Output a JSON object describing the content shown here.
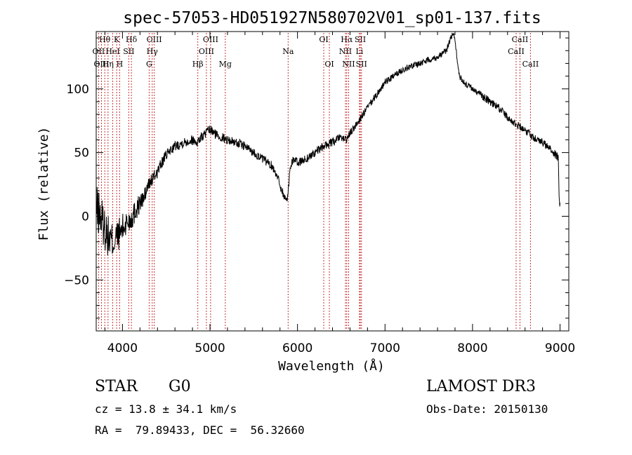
{
  "chart_data": {
    "type": "line",
    "title": "spec-57053-HD051927N580702V01_sp01-137.fits",
    "xlabel": "Wavelength (Å)",
    "ylabel": "Flux (relative)",
    "xlim": [
      3700,
      9100
    ],
    "ylim": [
      -90,
      145
    ],
    "xticks": [
      4000,
      5000,
      6000,
      7000,
      8000,
      9000
    ],
    "yticks": [
      -50,
      0,
      50,
      100
    ],
    "line_color": "#000000",
    "marker_color": "#c83232",
    "lines": [
      {
        "label": "Hθ",
        "wl": 3798,
        "row": 0
      },
      {
        "label": "OII",
        "wl": 3727,
        "row": 1
      },
      {
        "label": "OIII",
        "wl": 3760,
        "row": 2
      },
      {
        "label": "K",
        "wl": 3934,
        "row": 0
      },
      {
        "label": "HeI",
        "wl": 3889,
        "row": 1
      },
      {
        "label": "Hη",
        "wl": 3835,
        "row": 2
      },
      {
        "label": "H",
        "wl": 3968,
        "row": 2
      },
      {
        "label": "Hδ",
        "wl": 4102,
        "row": 0
      },
      {
        "label": "SII",
        "wl": 4072,
        "row": 1
      },
      {
        "label": "OIII",
        "wl": 4363,
        "row": 0
      },
      {
        "label": "Hγ",
        "wl": 4340,
        "row": 1
      },
      {
        "label": "G",
        "wl": 4305,
        "row": 2
      },
      {
        "label": "OIII",
        "wl": 5007,
        "row": 0
      },
      {
        "label": "OIII",
        "wl": 4959,
        "row": 1
      },
      {
        "label": "Hβ",
        "wl": 4861,
        "row": 2
      },
      {
        "label": "Mg",
        "wl": 5175,
        "row": 2
      },
      {
        "label": "Na",
        "wl": 5893,
        "row": 1
      },
      {
        "label": "OI",
        "wl": 6300,
        "row": 0
      },
      {
        "label": "OI",
        "wl": 6364,
        "row": 2
      },
      {
        "label": "Hα",
        "wl": 6563,
        "row": 0
      },
      {
        "label": "NII",
        "wl": 6548,
        "row": 1
      },
      {
        "label": "NII",
        "wl": 6584,
        "row": 2
      },
      {
        "label": "SII",
        "wl": 6717,
        "row": 0
      },
      {
        "label": "Li",
        "wl": 6708,
        "row": 1
      },
      {
        "label": "SII",
        "wl": 6731,
        "row": 2
      },
      {
        "label": "CaII",
        "wl": 8542,
        "row": 0
      },
      {
        "label": "CaII",
        "wl": 8498,
        "row": 1
      },
      {
        "label": "CaII",
        "wl": 8662,
        "row": 2
      }
    ],
    "spectrum": {
      "wavelength": [
        3700,
        3750,
        3800,
        3850,
        3900,
        3950,
        4000,
        4050,
        4100,
        4150,
        4200,
        4250,
        4300,
        4350,
        4400,
        4450,
        4500,
        4550,
        4600,
        4700,
        4800,
        4850,
        4900,
        4950,
        5000,
        5050,
        5100,
        5200,
        5300,
        5400,
        5500,
        5600,
        5700,
        5750,
        5800,
        5850,
        5880,
        5900,
        5920,
        5950,
        6000,
        6100,
        6200,
        6300,
        6400,
        6500,
        6560,
        6600,
        6700,
        6800,
        6900,
        7000,
        7100,
        7200,
        7300,
        7400,
        7500,
        7600,
        7700,
        7750,
        7780,
        7800,
        7820,
        7850,
        7900,
        8000,
        8100,
        8200,
        8300,
        8400,
        8500,
        8600,
        8700,
        8800,
        8900,
        8980,
        8990,
        9000
      ],
      "flux": [
        5,
        0,
        -10,
        -18,
        -20,
        -15,
        -10,
        -5,
        -2,
        5,
        10,
        15,
        25,
        30,
        35,
        42,
        48,
        52,
        55,
        58,
        60,
        58,
        62,
        65,
        68,
        65,
        63,
        60,
        58,
        55,
        50,
        45,
        40,
        35,
        25,
        15,
        12,
        25,
        40,
        45,
        42,
        45,
        50,
        55,
        58,
        62,
        60,
        65,
        75,
        85,
        95,
        105,
        110,
        115,
        118,
        120,
        123,
        125,
        130,
        140,
        143,
        140,
        125,
        110,
        105,
        100,
        95,
        90,
        85,
        78,
        72,
        68,
        62,
        58,
        52,
        46,
        12,
        8
      ],
      "noise": [
        20,
        18,
        17,
        16,
        14,
        13,
        12,
        11,
        10,
        9,
        8,
        7,
        6,
        5,
        5,
        4.5,
        4,
        4,
        4,
        4,
        4,
        4,
        4,
        4,
        4,
        4,
        4,
        3.5,
        3.5,
        3.5,
        3.5,
        3.5,
        3.5,
        4,
        4,
        4,
        4,
        4,
        3.5,
        3.5,
        3.5,
        3.5,
        3.5,
        3.5,
        3.5,
        3,
        3,
        3,
        3,
        3,
        3,
        3,
        2.5,
        2.5,
        2.5,
        2.5,
        2.5,
        2.5,
        2.5,
        2.5,
        2.5,
        2.5,
        2.5,
        2.5,
        2.5,
        2.5,
        3,
        3,
        3,
        3,
        3,
        3,
        3,
        3,
        3,
        3,
        3,
        3
      ]
    }
  },
  "info": {
    "object_class": "STAR",
    "subclass": "G0",
    "survey": "LAMOST DR3",
    "redshift": "cz = 13.8 ± 34.1 km/s",
    "obs_date": "Obs-Date: 20150130",
    "coordinates": "RA =  79.89433, DEC =  56.32660"
  }
}
